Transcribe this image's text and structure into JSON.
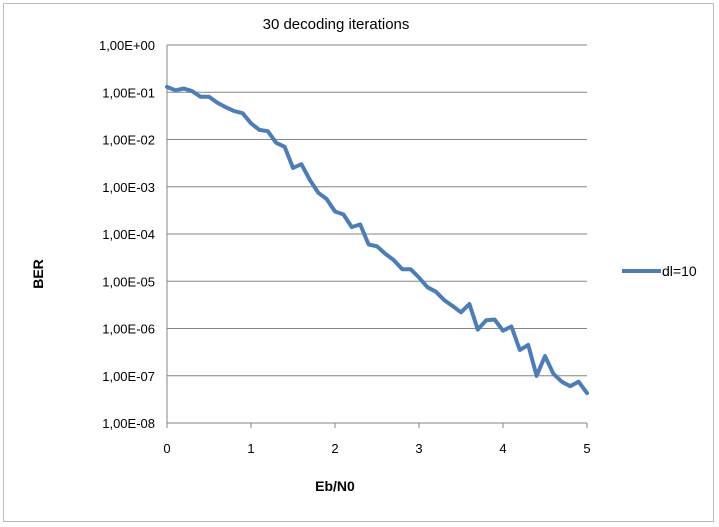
{
  "chart_data": {
    "type": "line",
    "title": "30 decoding iterations",
    "xlabel": "Eb/N0",
    "ylabel": "BER",
    "xlim": [
      0,
      5
    ],
    "ylim": [
      1e-08,
      1
    ],
    "y_scale": "log",
    "grid": "horizontal",
    "legend_placement": "right",
    "x_ticks": [
      "0",
      "1",
      "2",
      "3",
      "4",
      "5"
    ],
    "y_ticks": [
      "1,00E+00",
      "1,00E-01",
      "1,00E-02",
      "1,00E-03",
      "1,00E-04",
      "1,00E-05",
      "1,00E-06",
      "1,00E-07",
      "1,00E-08"
    ],
    "series": [
      {
        "name": "dl=10",
        "color": "#4a7ebb",
        "x": [
          0,
          0.1,
          0.2,
          0.3,
          0.4,
          0.5,
          0.6,
          0.7,
          0.8,
          0.9,
          1.0,
          1.1,
          1.2,
          1.3,
          1.4,
          1.5,
          1.6,
          1.7,
          1.8,
          1.9,
          2.0,
          2.1,
          2.2,
          2.3,
          2.4,
          2.5,
          2.6,
          2.7,
          2.8,
          2.9,
          3.0,
          3.1,
          3.2,
          3.3,
          3.4,
          3.5,
          3.6,
          3.7,
          3.8,
          3.9,
          4.0,
          4.1,
          4.2,
          4.3,
          4.4,
          4.5,
          4.6,
          4.7,
          4.8,
          4.9,
          5.0
        ],
        "y": [
          0.13,
          0.11,
          0.12,
          0.105,
          0.08,
          0.08,
          0.06,
          0.048,
          0.04,
          0.036,
          0.022,
          0.016,
          0.015,
          0.0085,
          0.007,
          0.0025,
          0.003,
          0.0014,
          0.00075,
          0.00055,
          0.0003,
          0.00026,
          0.00014,
          0.00016,
          6e-05,
          5.5e-05,
          3.8e-05,
          2.8e-05,
          1.8e-05,
          1.8e-05,
          1.2e-05,
          7.5e-06,
          6e-06,
          4e-06,
          3e-06,
          2.2e-06,
          3.3e-06,
          9.5e-07,
          1.5e-06,
          1.55e-06,
          9e-07,
          1.1e-06,
          3.5e-07,
          4.5e-07,
          1e-07,
          2.6e-07,
          1.1e-07,
          7.5e-08,
          6e-08,
          7.5e-08,
          4.3e-08
        ]
      }
    ]
  }
}
